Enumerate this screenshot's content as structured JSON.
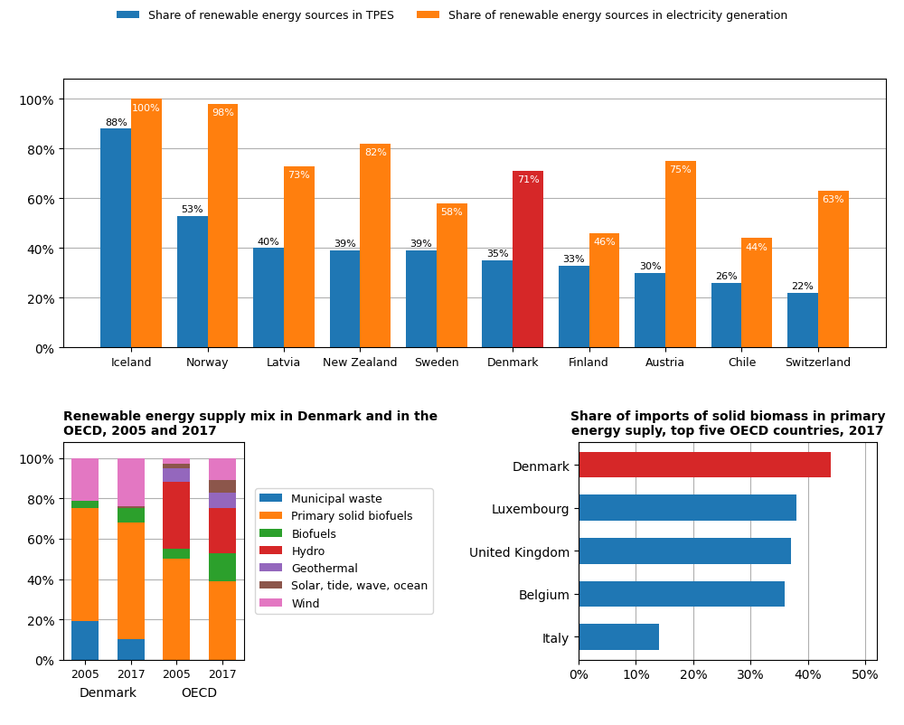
{
  "chart_data": [
    {
      "type": "bar",
      "categories": [
        "Iceland",
        "Norway",
        "Latvia",
        "New Zealand",
        "Sweden",
        "Denmark",
        "Finland",
        "Austria",
        "Chile",
        "Switzerland"
      ],
      "series": [
        {
          "name": "Share of renewable energy sources in TPES",
          "color": "#1f77b4",
          "values": [
            88,
            53,
            40,
            39,
            39,
            35,
            33,
            30,
            26,
            22
          ],
          "value_labels": [
            "88%",
            "53%",
            "40%",
            "39%",
            "39%",
            "35%",
            "33%",
            "30%",
            "26%",
            "22%"
          ]
        },
        {
          "name": "Share of renewable energy sources in electricity generation",
          "colors": [
            "#ff7f0e",
            "#ff7f0e",
            "#ff7f0e",
            "#ff7f0e",
            "#ff7f0e",
            "#d62728",
            "#ff7f0e",
            "#ff7f0e",
            "#ff7f0e",
            "#ff7f0e"
          ],
          "values": [
            100,
            98,
            73,
            82,
            58,
            71,
            46,
            75,
            44,
            63
          ],
          "value_labels": [
            "100%",
            "98%",
            "73%",
            "82%",
            "58%",
            "71%",
            "46%",
            "75%",
            "44%",
            "63%"
          ]
        }
      ],
      "ylim": [
        0,
        108
      ],
      "yticks": [
        {
          "value": 0,
          "label": "0%"
        },
        {
          "value": 20,
          "label": "20%"
        },
        {
          "value": 40,
          "label": "40%"
        },
        {
          "value": 60,
          "label": "60%"
        },
        {
          "value": 80,
          "label": "80%"
        },
        {
          "value": 100,
          "label": "100%"
        }
      ],
      "grid": true,
      "legend": "upper center",
      "data_labels": true
    },
    {
      "type": "bar",
      "stacked": true,
      "title": "Renewable energy supply mix in Denmark and in the\nOECD, 2005 and 2017",
      "categories": [
        "2005",
        "2017",
        "2005",
        "2017"
      ],
      "annotations": [
        "Denmark",
        "OECD"
      ],
      "series": [
        {
          "name": "Municipal waste",
          "values": [
            19,
            10,
            0,
            0
          ]
        },
        {
          "name": "Primary solid biofuels",
          "values": [
            56,
            58,
            50,
            39
          ]
        },
        {
          "name": "Biofuels",
          "values": [
            4,
            7,
            5,
            14
          ]
        },
        {
          "name": "Hydro",
          "values": [
            0,
            0,
            33,
            22
          ]
        },
        {
          "name": "Geothermal",
          "values": [
            0,
            0,
            7,
            8
          ]
        },
        {
          "name": "Solar, tide, wave, ocean",
          "values": [
            0,
            1,
            2,
            6
          ]
        },
        {
          "name": "Wind",
          "values": [
            21,
            24,
            3,
            11
          ]
        }
      ],
      "ylim": [
        0,
        108
      ],
      "yticks": [
        {
          "value": 0,
          "label": "0%"
        },
        {
          "value": 20,
          "label": "20%"
        },
        {
          "value": 40,
          "label": "40%"
        },
        {
          "value": 60,
          "label": "60%"
        },
        {
          "value": 80,
          "label": "80%"
        },
        {
          "value": 100,
          "label": "100%"
        }
      ],
      "grid": true,
      "legend": "center left"
    },
    {
      "type": "bar",
      "orientation": "horizontal",
      "title": "Share of imports of solid biomass in primary\nenergy suply, top five OECD countries, 2017",
      "categories": [
        "Italy",
        "Belgium",
        "United Kingdom",
        "Luxembourg",
        "Denmark"
      ],
      "values": [
        14,
        36,
        37,
        38,
        44
      ],
      "colors": [
        "#1f77b4",
        "#1f77b4",
        "#1f77b4",
        "#1f77b4",
        "#d62728"
      ],
      "xlim": [
        0,
        52
      ],
      "xticks": [
        {
          "value": 0,
          "label": "0%"
        },
        {
          "value": 10,
          "label": "10%"
        },
        {
          "value": 20,
          "label": "20%"
        },
        {
          "value": 30,
          "label": "30%"
        },
        {
          "value": 40,
          "label": "40%"
        },
        {
          "value": 50,
          "label": "50%"
        }
      ],
      "grid": true
    }
  ]
}
